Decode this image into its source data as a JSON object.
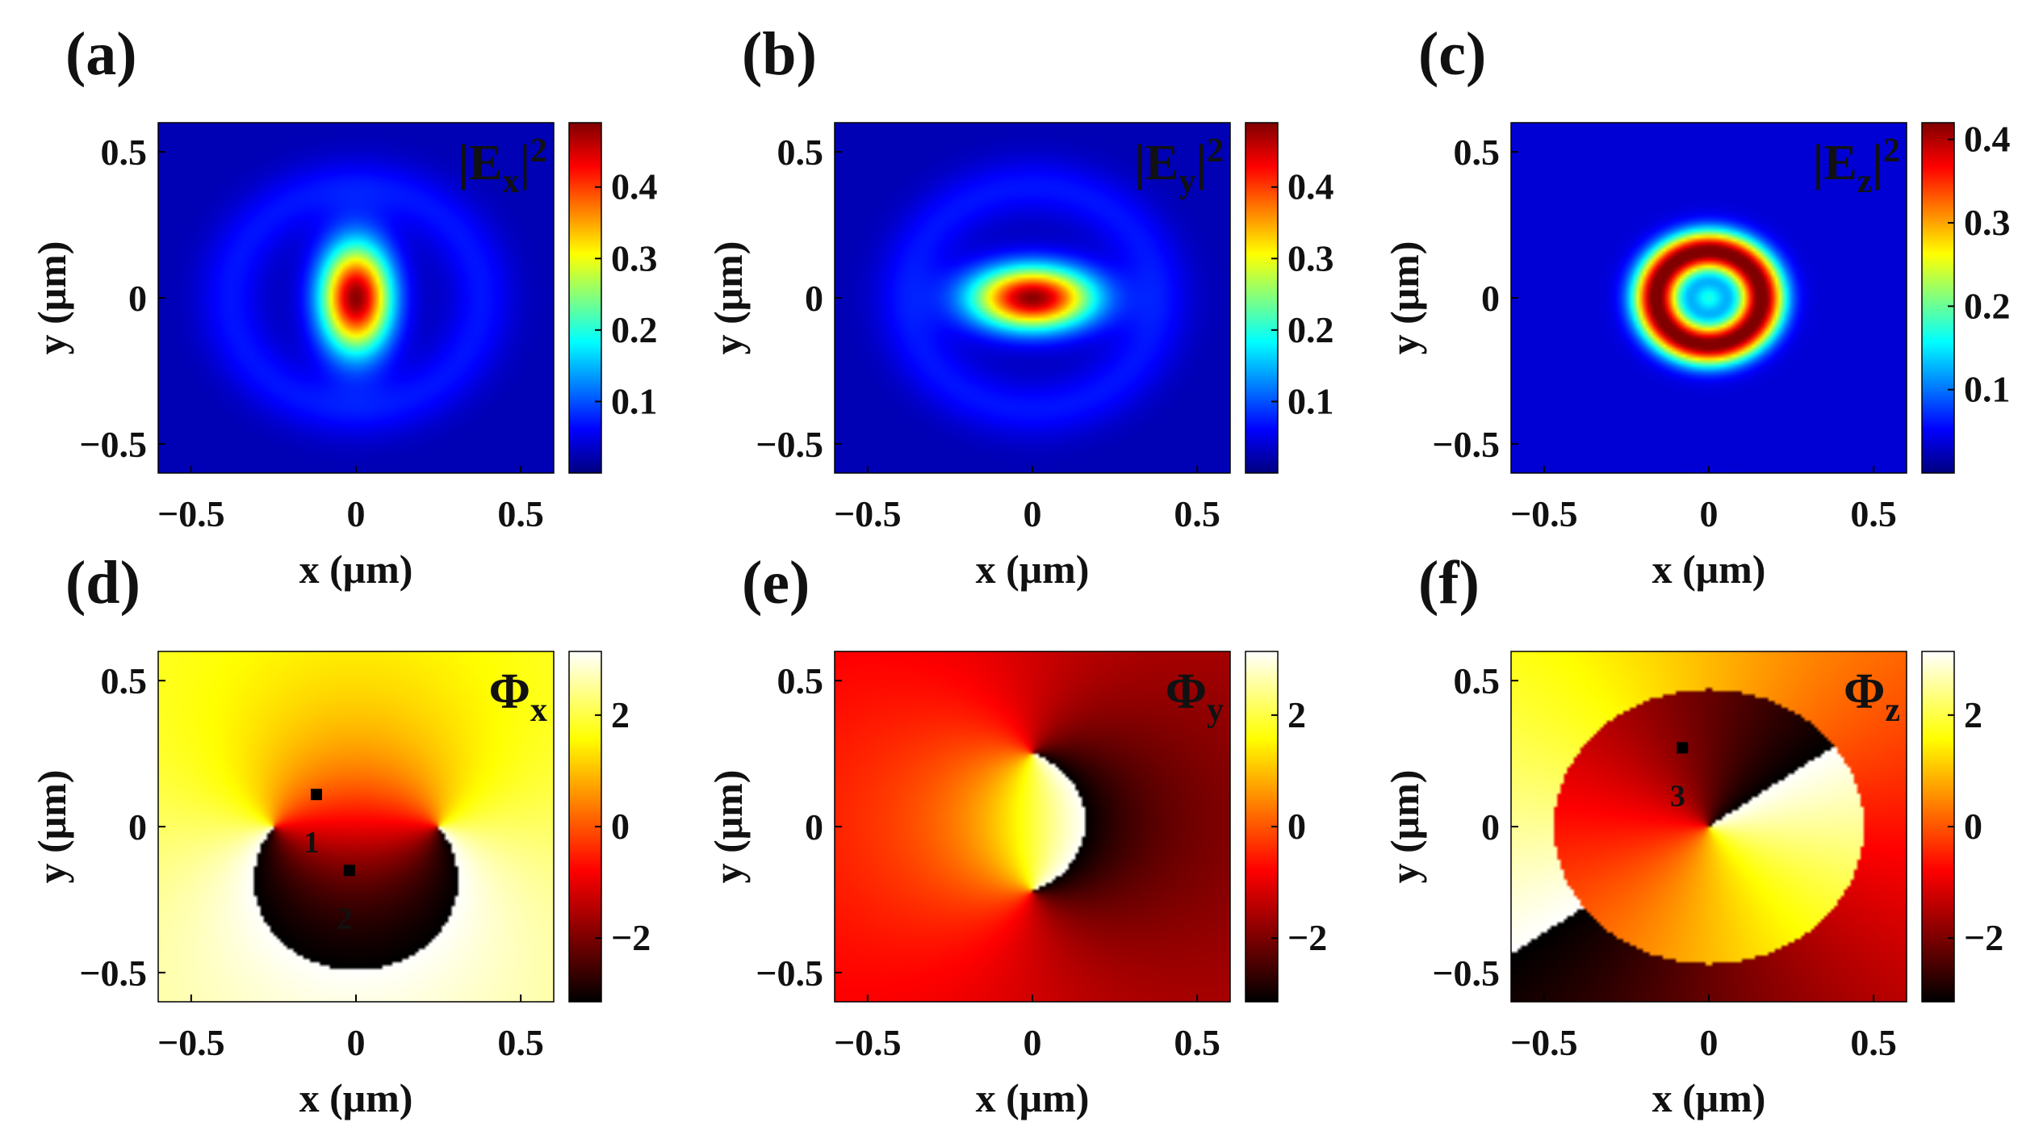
{
  "figure": {
    "axis_units": "μm",
    "xlabel": "x (μm)",
    "ylabel": "y (μm)"
  },
  "chart_data": [
    {
      "type": "heatmap",
      "id": "a",
      "panel_label": "(a)",
      "field_label": {
        "base": "|E",
        "sub": "x",
        "tail": "|",
        "sup": "2"
      },
      "quantity": "intensity",
      "component": "Ex",
      "xlabel": "x (μm)",
      "ylabel": "y (μm)",
      "xlim": [
        -0.6,
        0.6
      ],
      "ylim": [
        -0.6,
        0.6
      ],
      "xticks": [
        -0.5,
        0,
        0.5
      ],
      "xtick_labels": [
        "−0.5",
        "0",
        "0.5"
      ],
      "yticks": [
        0.5,
        0,
        -0.5
      ],
      "ytick_labels": [
        "0.5",
        "0",
        "−0.5"
      ],
      "colormap": "jet",
      "clim": [
        0,
        0.49
      ],
      "colorbar_ticks": [
        0.1,
        0.2,
        0.3,
        0.4
      ],
      "colorbar_tick_labels": [
        "0.1",
        "0.2",
        "0.3",
        "0.4"
      ]
    },
    {
      "type": "heatmap",
      "id": "b",
      "panel_label": "(b)",
      "field_label": {
        "base": "|E",
        "sub": "y",
        "tail": "|",
        "sup": "2"
      },
      "quantity": "intensity",
      "component": "Ey",
      "xlabel": "x (μm)",
      "ylabel": "y (μm)",
      "xlim": [
        -0.6,
        0.6
      ],
      "ylim": [
        -0.6,
        0.6
      ],
      "xticks": [
        -0.5,
        0,
        0.5
      ],
      "xtick_labels": [
        "−0.5",
        "0",
        "0.5"
      ],
      "yticks": [
        0.5,
        0,
        -0.5
      ],
      "ytick_labels": [
        "0.5",
        "0",
        "−0.5"
      ],
      "colormap": "jet",
      "clim": [
        0,
        0.49
      ],
      "colorbar_ticks": [
        0.1,
        0.2,
        0.3,
        0.4
      ],
      "colorbar_tick_labels": [
        "0.1",
        "0.2",
        "0.3",
        "0.4"
      ]
    },
    {
      "type": "heatmap",
      "id": "c",
      "panel_label": "(c)",
      "field_label": {
        "base": "|E",
        "sub": "z",
        "tail": "|",
        "sup": "2"
      },
      "quantity": "intensity",
      "component": "Ez",
      "xlabel": "x (μm)",
      "ylabel": "y (μm)",
      "xlim": [
        -0.6,
        0.6
      ],
      "ylim": [
        -0.6,
        0.6
      ],
      "xticks": [
        -0.5,
        0,
        0.5
      ],
      "xtick_labels": [
        "−0.5",
        "0",
        "0.5"
      ],
      "yticks": [
        0.5,
        0,
        -0.5
      ],
      "ytick_labels": [
        "0.5",
        "0",
        "−0.5"
      ],
      "colormap": "jet",
      "clim": [
        0,
        0.42
      ],
      "colorbar_ticks": [
        0.1,
        0.2,
        0.3,
        0.4
      ],
      "colorbar_tick_labels": [
        "0.1",
        "0.2",
        "0.3",
        "0.4"
      ]
    },
    {
      "type": "heatmap",
      "id": "d",
      "panel_label": "(d)",
      "field_label": {
        "base": "Φ",
        "sub": "x",
        "tail": "",
        "sup": ""
      },
      "quantity": "phase",
      "component": "Ex",
      "xlabel": "x (μm)",
      "ylabel": "y (μm)",
      "xlim": [
        -0.6,
        0.6
      ],
      "ylim": [
        -0.6,
        0.6
      ],
      "xticks": [
        -0.5,
        0,
        0.5
      ],
      "xtick_labels": [
        "−0.5",
        "0",
        "0.5"
      ],
      "yticks": [
        0.5,
        0,
        -0.5
      ],
      "ytick_labels": [
        "0.5",
        "0",
        "−0.5"
      ],
      "colormap": "hot",
      "clim": [
        -3.1416,
        3.1416
      ],
      "colorbar_ticks": [
        2,
        0,
        -2
      ],
      "colorbar_tick_labels": [
        "2",
        "0",
        "−2"
      ],
      "phase_singularities": [
        {
          "x": -0.25,
          "y": 0
        },
        {
          "x": 0.25,
          "y": 0
        }
      ],
      "annotations": [
        {
          "label": "1",
          "x": -0.12,
          "y": 0.11
        },
        {
          "label": "2",
          "x": -0.02,
          "y": -0.15
        }
      ]
    },
    {
      "type": "heatmap",
      "id": "e",
      "panel_label": "(e)",
      "field_label": {
        "base": "Φ",
        "sub": "y",
        "tail": "",
        "sup": ""
      },
      "quantity": "phase",
      "component": "Ey",
      "xlabel": "x (μm)",
      "ylabel": "y (μm)",
      "xlim": [
        -0.6,
        0.6
      ],
      "ylim": [
        -0.6,
        0.6
      ],
      "xticks": [
        -0.5,
        0,
        0.5
      ],
      "xtick_labels": [
        "−0.5",
        "0",
        "0.5"
      ],
      "yticks": [
        0.5,
        0,
        -0.5
      ],
      "ytick_labels": [
        "0.5",
        "0",
        "−0.5"
      ],
      "colormap": "hot",
      "clim": [
        -3.1416,
        3.1416
      ],
      "colorbar_ticks": [
        2,
        0,
        -2
      ],
      "colorbar_tick_labels": [
        "2",
        "0",
        "−2"
      ],
      "phase_singularities": [
        {
          "x": 0,
          "y": 0.25
        },
        {
          "x": 0,
          "y": -0.22
        }
      ]
    },
    {
      "type": "heatmap",
      "id": "f",
      "panel_label": "(f)",
      "field_label": {
        "base": "Φ",
        "sub": "z",
        "tail": "",
        "sup": ""
      },
      "quantity": "phase",
      "component": "Ez",
      "xlabel": "x (μm)",
      "ylabel": "y (μm)",
      "xlim": [
        -0.6,
        0.6
      ],
      "ylim": [
        -0.6,
        0.6
      ],
      "xticks": [
        -0.5,
        0,
        0.5
      ],
      "xtick_labels": [
        "−0.5",
        "0",
        "0.5"
      ],
      "yticks": [
        0.5,
        0,
        -0.5
      ],
      "ytick_labels": [
        "0.5",
        "0",
        "−0.5"
      ],
      "colormap": "hot",
      "clim": [
        -3.1416,
        3.1416
      ],
      "colorbar_ticks": [
        2,
        0,
        -2
      ],
      "colorbar_tick_labels": [
        "2",
        "0",
        "−2"
      ],
      "phase_singularities": [
        {
          "x": 0,
          "y": 0
        }
      ],
      "annotations": [
        {
          "label": "3",
          "x": -0.08,
          "y": 0.27
        }
      ]
    }
  ]
}
